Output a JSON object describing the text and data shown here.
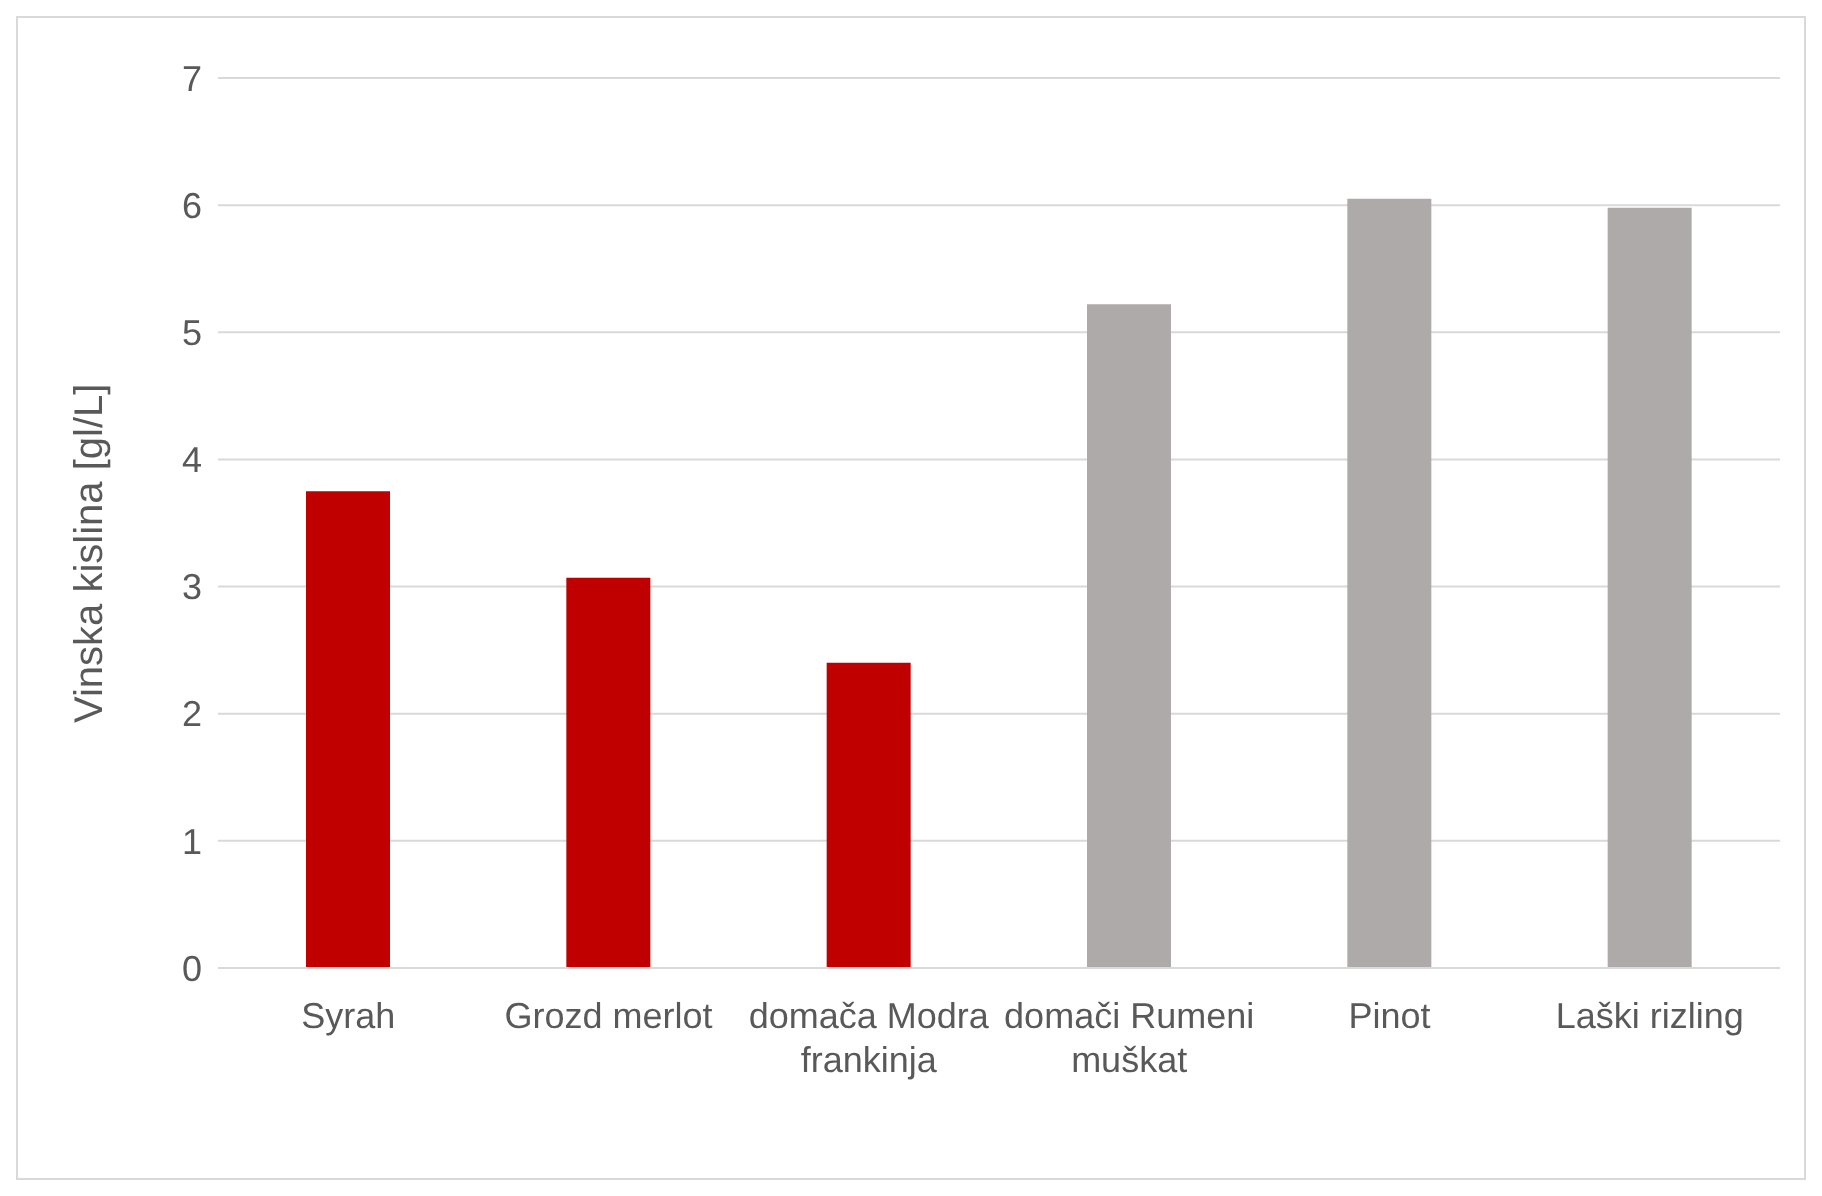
{
  "chart_data": {
    "type": "bar",
    "ylabel": "Vinska kislina [gl/L]",
    "categories": [
      "Syrah",
      "Grozd merlot",
      "domača Modra frankinja",
      "domači Rumeni muškat",
      "Pinot",
      "Laški rizling"
    ],
    "values": [
      3.75,
      3.07,
      2.4,
      5.22,
      6.05,
      5.98
    ],
    "colors": [
      "#c00000",
      "#c00000",
      "#c00000",
      "#aeaaaa",
      "#aeaaaa",
      "#aeaaaa"
    ],
    "ylim": [
      0,
      7
    ],
    "yticks": [
      0,
      1,
      2,
      3,
      4,
      5,
      6,
      7
    ],
    "grid": "y"
  }
}
